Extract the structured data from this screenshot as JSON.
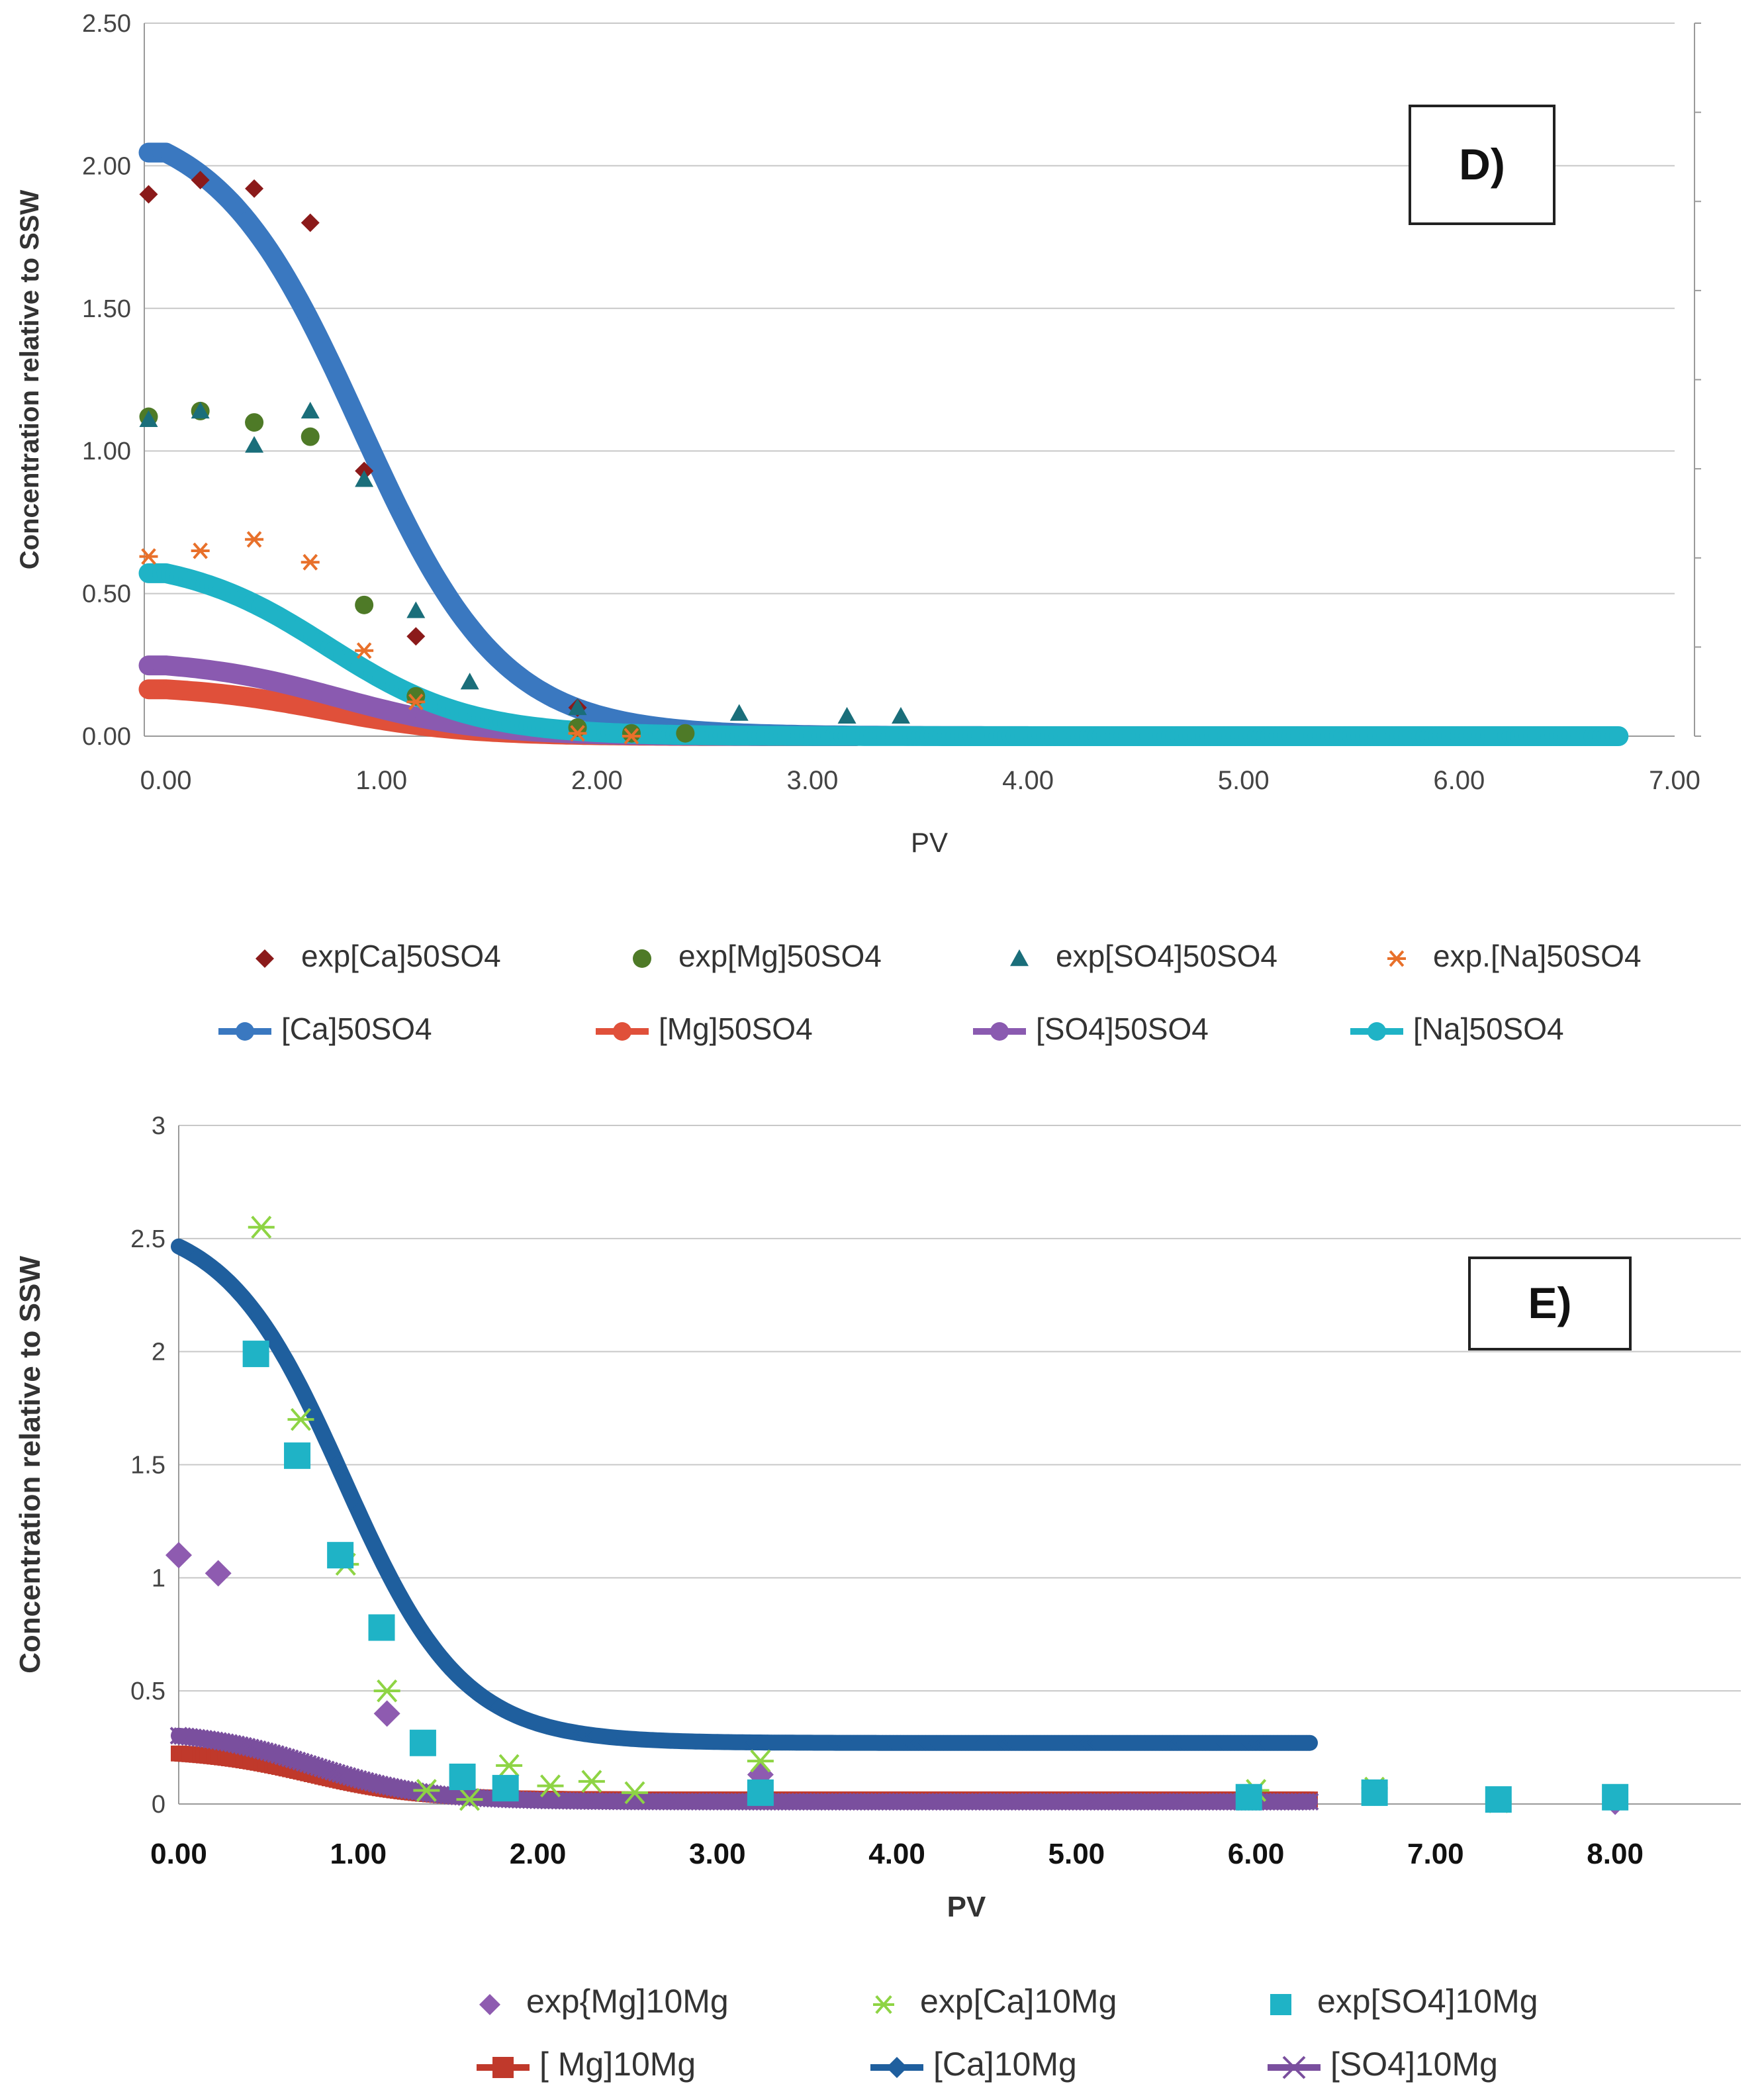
{
  "chart_data": [
    {
      "panel_label": "D)",
      "type": "scatter",
      "xlabel": "PV",
      "ylabel": "Concentration relative to SSW",
      "xlim": [
        -0.1,
        7.0
      ],
      "ylim": [
        0,
        2.5
      ],
      "x_ticks": [
        "0.00",
        "1.00",
        "2.00",
        "3.00",
        "4.00",
        "5.00",
        "6.00",
        "7.00"
      ],
      "y_ticks": [
        "0.00",
        "0.50",
        "1.00",
        "1.50",
        "2.00",
        "2.50"
      ],
      "grid": true,
      "legend": "bottom",
      "experimental": [
        {
          "name": "exp[Ca]50SO4",
          "marker": "diamond",
          "color": "#8b1a1a",
          "x": [
            -0.08,
            0.16,
            0.41,
            0.67,
            0.92,
            1.16,
            1.91,
            2.16
          ],
          "y": [
            1.9,
            1.95,
            1.92,
            1.8,
            0.93,
            0.35,
            0.1,
            0.01
          ]
        },
        {
          "name": "exp[Mg]50SO4",
          "marker": "circle",
          "color": "#4e7a27",
          "x": [
            -0.08,
            0.16,
            0.41,
            0.67,
            0.92,
            1.16,
            1.91,
            2.16,
            2.41
          ],
          "y": [
            1.12,
            1.14,
            1.1,
            1.05,
            0.46,
            0.14,
            0.03,
            0.01,
            0.01
          ]
        },
        {
          "name": "exp[SO4]50SO4",
          "marker": "triangle",
          "color": "#1a6e7a",
          "x": [
            -0.08,
            0.16,
            0.41,
            0.67,
            0.92,
            1.16,
            1.41,
            1.91,
            2.66,
            3.16,
            3.41
          ],
          "y": [
            1.11,
            1.14,
            1.02,
            1.14,
            0.9,
            0.44,
            0.19,
            0.1,
            0.08,
            0.07,
            0.07
          ]
        },
        {
          "name": "exp.[Na]50SO4",
          "marker": "star",
          "color": "#e8702a",
          "x": [
            -0.08,
            0.16,
            0.41,
            0.67,
            0.92,
            1.16,
            1.91,
            2.16
          ],
          "y": [
            0.63,
            0.65,
            0.69,
            0.61,
            0.3,
            0.12,
            0.01,
            0.0
          ]
        }
      ],
      "model": [
        {
          "name": "[Ca]50SO4",
          "color": "#3a78c0",
          "y0": 2.18,
          "halfPV": 0.9,
          "width": 0.33,
          "tail": 0.0,
          "xmax": 4.0
        },
        {
          "name": "[Mg]50SO4",
          "color": "#e0503a",
          "y0": 0.18,
          "halfPV": 0.75,
          "width": 0.32,
          "tail": 0.0,
          "xmax": 3.2
        },
        {
          "name": "[SO4]50SO4",
          "color": "#8a5ab0",
          "y0": 0.27,
          "halfPV": 0.8,
          "width": 0.33,
          "tail": 0.0,
          "xmax": 3.2
        },
        {
          "name": "[Na]50SO4",
          "color": "#1fb3c6",
          "y0": 0.63,
          "halfPV": 0.75,
          "width": 0.33,
          "tail": 0.0,
          "xmax": 6.75
        }
      ]
    },
    {
      "panel_label": "E)",
      "type": "scatter",
      "xlabel": "PV",
      "ylabel": "Concentration relative to SSW",
      "xlim": [
        0,
        8.7
      ],
      "ylim": [
        0,
        3
      ],
      "x_ticks": [
        "0.00",
        "1.00",
        "2.00",
        "3.00",
        "4.00",
        "5.00",
        "6.00",
        "7.00",
        "8.00"
      ],
      "y_ticks": [
        "0",
        "0.5",
        "1",
        "1.5",
        "2",
        "2.5",
        "3"
      ],
      "grid": true,
      "legend": "bottom",
      "experimental": [
        {
          "name": "exp{Mg]10Mg",
          "marker": "diamond",
          "color": "#8e5bb0",
          "x": [
            0.0,
            0.22,
            1.16,
            3.24,
            6.66,
            8.0
          ],
          "y": [
            1.1,
            1.02,
            0.4,
            0.13,
            0.05,
            0.01
          ]
        },
        {
          "name": "exp[Ca]10Mg",
          "marker": "star",
          "color": "#8ed444",
          "x": [
            0.46,
            0.68,
            0.93,
            1.16,
            1.38,
            1.62,
            1.84,
            2.07,
            2.3,
            2.54,
            3.24,
            6.0,
            6.66,
            7.35
          ],
          "y": [
            2.55,
            1.7,
            1.06,
            0.5,
            0.06,
            0.02,
            0.17,
            0.08,
            0.1,
            0.05,
            0.19,
            0.06,
            0.07,
            0.01
          ]
        },
        {
          "name": "exp[SO4]10Mg",
          "marker": "square",
          "color": "#1fb3c6",
          "x": [
            0.43,
            0.66,
            0.9,
            1.13,
            1.36,
            1.58,
            1.82,
            3.24,
            5.96,
            6.66,
            7.35,
            8.0
          ],
          "y": [
            1.99,
            1.54,
            1.1,
            0.78,
            0.27,
            0.12,
            0.07,
            0.05,
            0.03,
            0.05,
            0.02,
            0.03
          ]
        }
      ],
      "model": [
        {
          "name": "[ Mg]10Mg",
          "marker": "square",
          "color": "#c0392b",
          "y0": 0.24,
          "halfPV": 0.75,
          "width": 0.3,
          "tail": 0.02,
          "xmax": 6.3
        },
        {
          "name": "[Ca]10Mg",
          "marker": "diamond",
          "color": "#1f5f9e",
          "y0": 2.6,
          "halfPV": 0.92,
          "width": 0.33,
          "tail": 0.27,
          "xmax": 6.3
        },
        {
          "name": "[SO4]10Mg",
          "marker": "x",
          "color": "#7a4f9e",
          "y0": 0.33,
          "halfPV": 0.75,
          "width": 0.32,
          "tail": 0.01,
          "xmax": 6.3
        }
      ]
    }
  ]
}
